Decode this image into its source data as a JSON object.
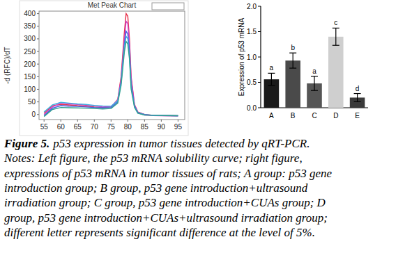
{
  "chart_data": [
    {
      "type": "line",
      "title": "Met Peak Chart",
      "y_label": "-d (RFC)/dT",
      "x": [
        55,
        57.5,
        60,
        62.5,
        65,
        67.5,
        70,
        72.5,
        75,
        77,
        78,
        79,
        79.5,
        80,
        80.5,
        81,
        82,
        83,
        85,
        87.5,
        90,
        92.5,
        95
      ],
      "series": [
        {
          "color": "#e8304a",
          "values": [
            5,
            35,
            40,
            38,
            35,
            33,
            30,
            28,
            30,
            60,
            150,
            330,
            400,
            390,
            300,
            150,
            40,
            10,
            0,
            -3,
            -4,
            -5,
            -5
          ]
        },
        {
          "color": "#cc44cc",
          "values": [
            0,
            30,
            45,
            42,
            40,
            37,
            34,
            30,
            32,
            58,
            140,
            300,
            370,
            360,
            280,
            140,
            38,
            8,
            -2,
            -4,
            -5,
            -5,
            -6
          ]
        },
        {
          "color": "#4060e0",
          "values": [
            -5,
            25,
            35,
            33,
            32,
            30,
            28,
            27,
            28,
            50,
            130,
            280,
            330,
            320,
            250,
            120,
            35,
            8,
            0,
            -3,
            -4,
            -4,
            -5
          ]
        },
        {
          "color": "#40b0e0",
          "values": [
            10,
            38,
            48,
            45,
            42,
            40,
            36,
            34,
            33,
            55,
            125,
            270,
            310,
            300,
            230,
            110,
            30,
            6,
            -1,
            -3,
            -4,
            -5,
            -5
          ]
        },
        {
          "color": "#30a090",
          "values": [
            -8,
            20,
            28,
            27,
            26,
            25,
            24,
            22,
            24,
            45,
            115,
            250,
            290,
            280,
            220,
            100,
            28,
            5,
            -2,
            -3,
            -4,
            -4,
            -5
          ]
        }
      ],
      "xlim": [
        53.5,
        97
      ],
      "xticks": [
        55,
        60,
        65,
        70,
        75,
        80,
        85,
        90,
        95
      ],
      "ylim": [
        -20,
        410
      ],
      "yticks": [
        0,
        50,
        100,
        150,
        200,
        250,
        300,
        350,
        400
      ],
      "grid": false
    },
    {
      "type": "bar",
      "y_label": "Expression of p53 mRNA",
      "categories": [
        "A",
        "B",
        "C",
        "D",
        "E"
      ],
      "values": [
        0.56,
        0.93,
        0.48,
        1.4,
        0.2
      ],
      "errors": [
        0.12,
        0.15,
        0.14,
        0.17,
        0.08
      ],
      "annotations": [
        "a",
        "b",
        "a",
        "c",
        "d"
      ],
      "colors": [
        "#1a1a1a",
        "#4a4a4a",
        "#555555",
        "#cfcfcf",
        "#3a3a3a"
      ],
      "ylim": [
        0,
        2
      ],
      "yticks": [
        {
          "value": 0,
          "label": "0.0"
        },
        0.5,
        {
          "value": 1,
          "label": "1.0"
        },
        1.5,
        {
          "value": 2,
          "label": "2.0"
        }
      ],
      "grid": false
    }
  ],
  "caption": {
    "label": "Figure 5.",
    "lines": [
      "p53 expression in tumor tissues detected by qRT-PCR.",
      "Notes: Left figure, the p53 mRNA solubility curve; right figure,",
      "expressions of p53 mRNA in tumor tissues of rats; A group: p53 gene",
      "introduction group; B group, p53 gene introduction+ultrasound",
      "irradiation group; C group, p53 gene introduction+CUAs group; D",
      "group, p53 gene introduction+CUAs+ultrasound irradiation group;",
      "different letter represents significant difference at the level of 5%."
    ]
  }
}
